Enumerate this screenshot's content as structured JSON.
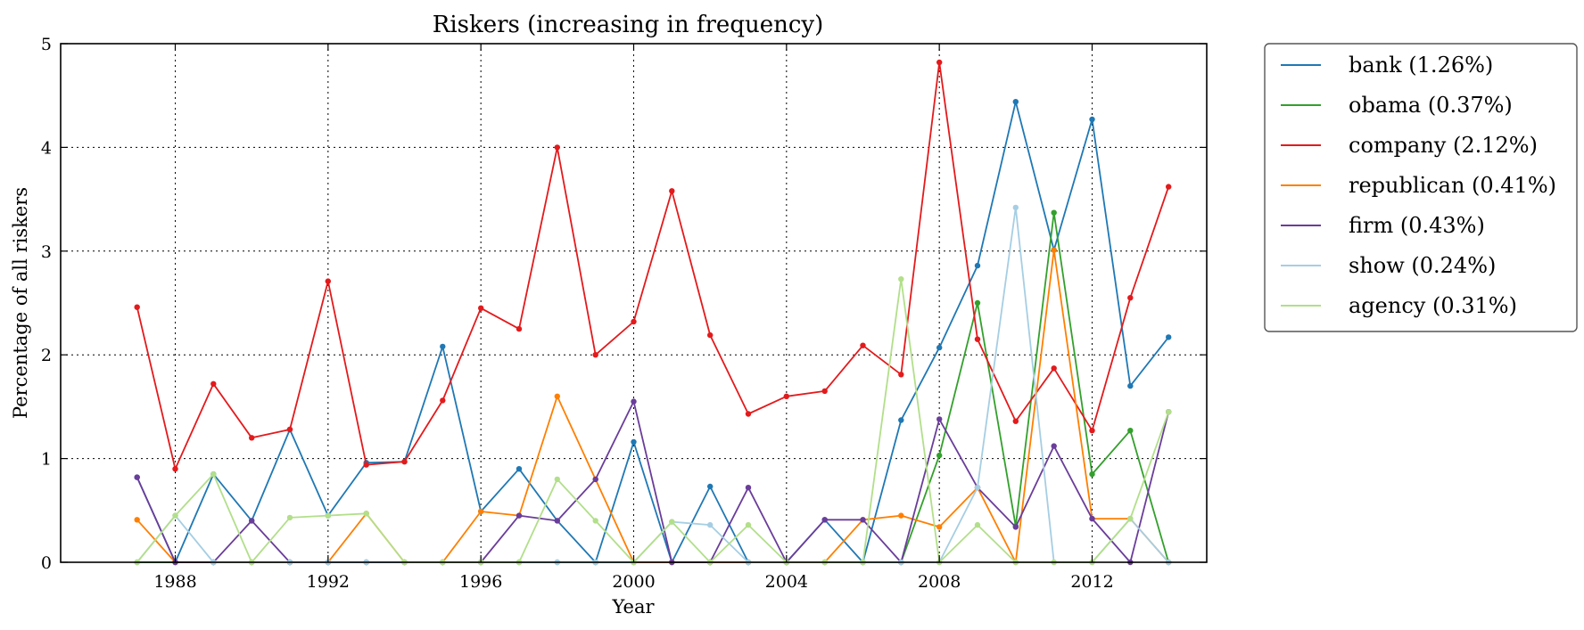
{
  "chart_data": {
    "type": "line",
    "title": "Riskers (increasing in frequency)",
    "xlabel": "Year",
    "ylabel": "Percentage of all riskers",
    "xlim": [
      1985,
      2015
    ],
    "ylim": [
      0,
      5
    ],
    "xticks": [
      1988,
      1992,
      1996,
      2000,
      2004,
      2008,
      2012
    ],
    "yticks": [
      0,
      1,
      2,
      3,
      4,
      5
    ],
    "grid": true,
    "legend_position": "outside-right-top",
    "x": [
      1987,
      1988,
      1989,
      1990,
      1991,
      1992,
      1993,
      1994,
      1995,
      1996,
      1997,
      1998,
      1999,
      2000,
      2001,
      2002,
      2003,
      2004,
      2005,
      2006,
      2007,
      2008,
      2009,
      2010,
      2011,
      2012,
      2013,
      2014
    ],
    "series": [
      {
        "name": "bank",
        "legend_label": "bank (1.26%)",
        "color": "#1f78b4",
        "values": [
          0.82,
          0.0,
          0.85,
          0.4,
          1.28,
          0.45,
          0.96,
          0.97,
          2.08,
          0.49,
          0.9,
          0.4,
          0.0,
          1.16,
          0.0,
          0.73,
          0.0,
          0.0,
          0.41,
          0.0,
          1.37,
          2.07,
          2.86,
          4.44,
          3.01,
          4.27,
          1.7,
          2.17
        ]
      },
      {
        "name": "obama",
        "legend_label": "obama (0.37%)",
        "color": "#33a02c",
        "values": [
          0,
          0,
          0,
          0,
          0,
          0,
          0,
          0,
          0,
          0,
          0,
          0,
          0,
          0,
          0,
          0,
          0,
          0,
          0,
          0,
          0,
          1.03,
          2.5,
          0.35,
          3.37,
          0.85,
          1.27,
          0.0
        ]
      },
      {
        "name": "company",
        "legend_label": "company (2.12%)",
        "color": "#e31a1c",
        "values": [
          2.46,
          0.9,
          1.72,
          1.2,
          1.28,
          2.71,
          0.94,
          0.97,
          1.56,
          2.45,
          2.25,
          4.0,
          2.0,
          2.32,
          3.58,
          2.19,
          1.43,
          1.6,
          1.65,
          2.09,
          1.81,
          4.82,
          2.15,
          1.36,
          1.87,
          1.27,
          2.55,
          3.62
        ]
      },
      {
        "name": "republican",
        "legend_label": "republican (0.41%)",
        "color": "#ff7f00",
        "values": [
          0.41,
          0.0,
          0.0,
          0.0,
          0.0,
          0.0,
          0.47,
          0.0,
          0.0,
          0.49,
          0.45,
          1.6,
          0.8,
          0.0,
          0.0,
          0.0,
          0.0,
          0.0,
          0.0,
          0.41,
          0.45,
          0.34,
          0.72,
          0.0,
          3.01,
          0.42,
          0.42,
          0.0
        ]
      },
      {
        "name": "firm",
        "legend_label": "firm (0.43%)",
        "color": "#6a3d9a",
        "values": [
          0.82,
          0.0,
          0.0,
          0.4,
          0.0,
          0.0,
          0.0,
          0.0,
          0.0,
          0.0,
          0.45,
          0.4,
          0.8,
          1.55,
          0.0,
          0.0,
          0.72,
          0.0,
          0.41,
          0.41,
          0.0,
          1.38,
          0.72,
          0.34,
          1.12,
          0.42,
          0.0,
          1.45
        ]
      },
      {
        "name": "show",
        "legend_label": "show (0.24%)",
        "color": "#a6cee3",
        "values": [
          0.0,
          0.45,
          0.0,
          0.0,
          0.0,
          0.0,
          0.0,
          0.0,
          0.0,
          0.0,
          0.0,
          0.0,
          0.0,
          0.0,
          0.39,
          0.36,
          0.0,
          0.0,
          0.0,
          0.0,
          0.0,
          0.0,
          0.72,
          3.42,
          0.0,
          0.0,
          0.42,
          0.0
        ]
      },
      {
        "name": "agency",
        "legend_label": "agency (0.31%)",
        "color": "#b2df8a",
        "values": [
          0.0,
          0.45,
          0.85,
          0.0,
          0.43,
          0.45,
          0.47,
          0.0,
          0.0,
          0.0,
          0.0,
          0.8,
          0.4,
          0.0,
          0.39,
          0.0,
          0.36,
          0.0,
          0.0,
          0.0,
          2.73,
          0.0,
          0.36,
          0.0,
          0.0,
          0.0,
          0.42,
          1.45
        ]
      }
    ]
  }
}
